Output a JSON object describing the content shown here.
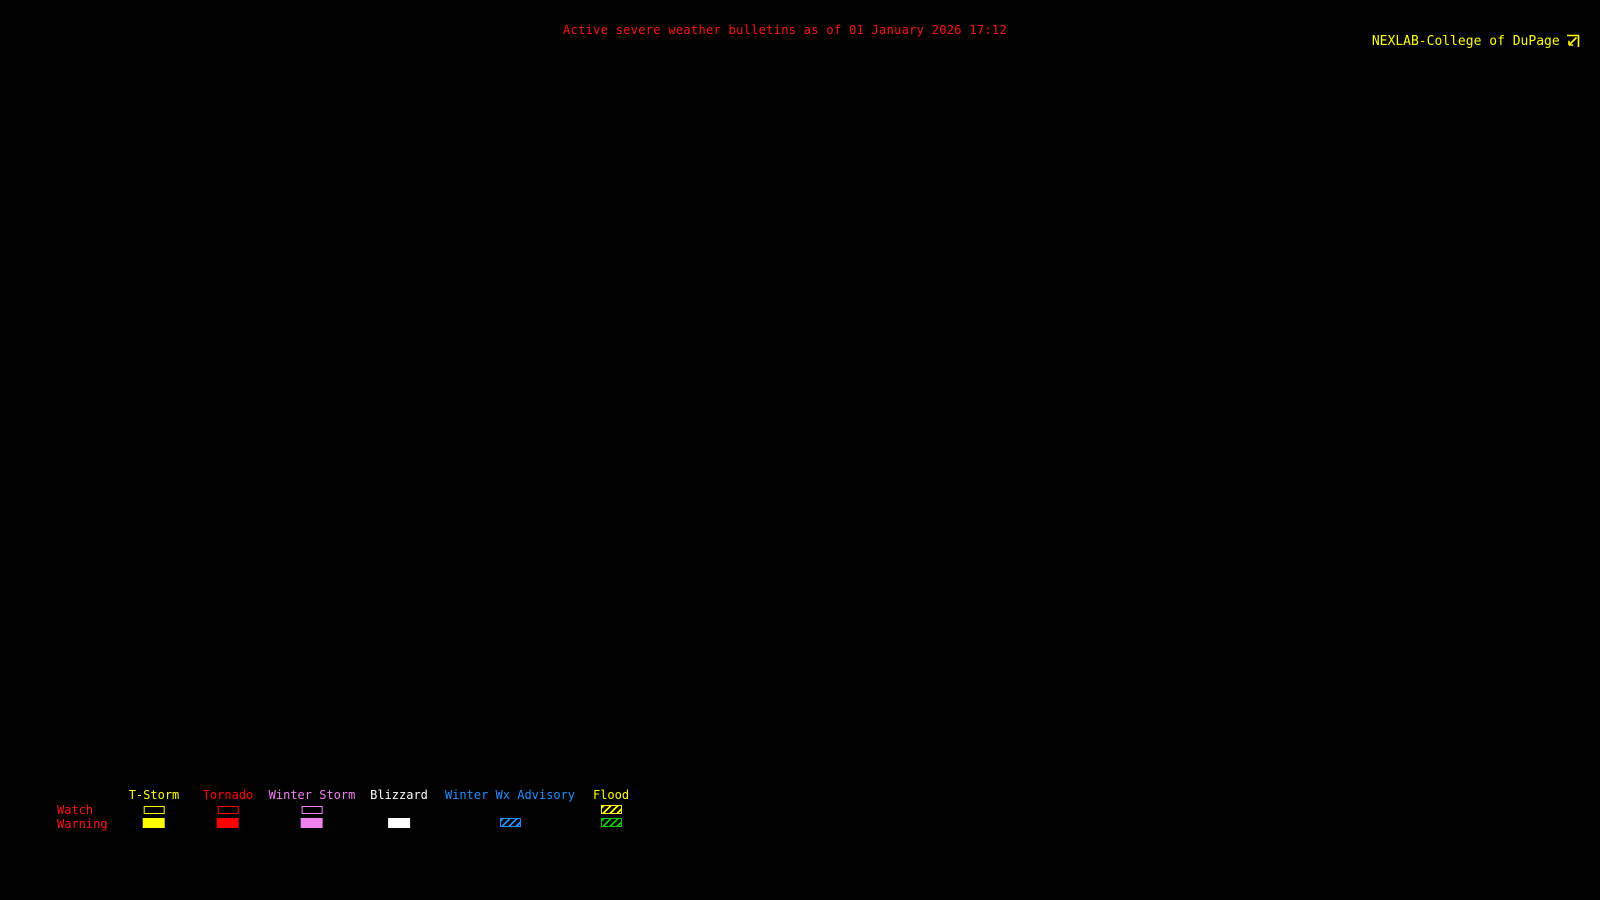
{
  "map": {
    "background_color": "#000000"
  },
  "header": {
    "title": "Active severe weather bulletins as of 01 January 2026 17:12",
    "title_color": "#ff1414"
  },
  "branding": {
    "text": "NEXLAB-College of DuPage",
    "color": "#ffff00",
    "icon": "nexlab-logo-icon"
  },
  "legend": {
    "row_label_color": "#ff1414",
    "rows": [
      {
        "label": "Watch"
      },
      {
        "label": "Warning"
      }
    ],
    "columns": [
      {
        "label": "T-Storm",
        "color": "#ffff00",
        "watch_style": "outline",
        "warning_style": "filled"
      },
      {
        "label": "Tornado",
        "color": "#ff0000",
        "watch_style": "outline",
        "warning_style": "filled"
      },
      {
        "label": "Winter Storm",
        "color": "#ee82ee",
        "watch_style": "outline",
        "warning_style": "filled"
      },
      {
        "label": "Blizzard",
        "color": "#ffffff",
        "watch_style": "none",
        "warning_style": "filled"
      },
      {
        "label": "Winter Wx Advisory",
        "color": "#1e90ff",
        "watch_style": "none",
        "warning_style": "hatched"
      },
      {
        "label": "Flood",
        "color": "#ffff00",
        "watch_style": "hatched",
        "warning_style": "hatched",
        "warning_color": "#00cd00"
      }
    ]
  }
}
